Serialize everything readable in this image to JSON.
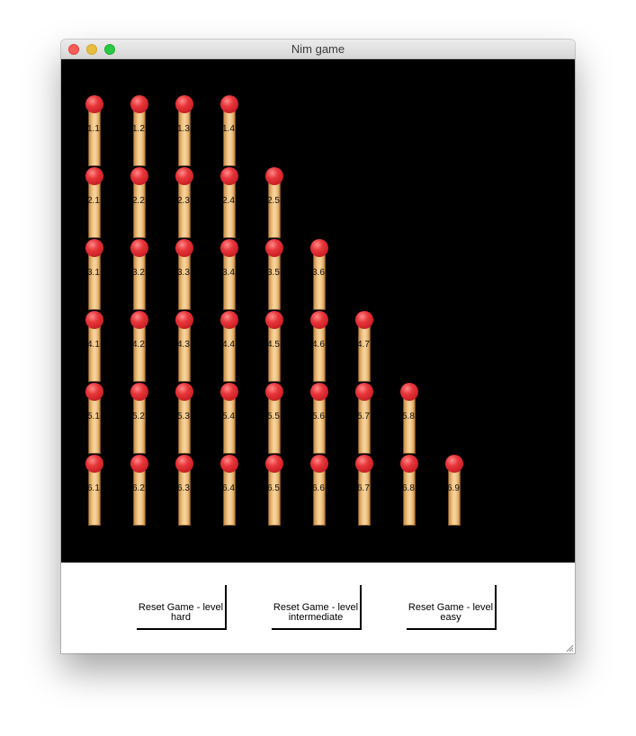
{
  "window": {
    "title": "Nim game"
  },
  "board": {
    "background": "#000000",
    "match_head_color": "#e8363a",
    "match_stick_color": "#f4c98a",
    "rows": [
      {
        "label_prefix": "1",
        "matches": [
          "1.1",
          "1.2",
          "1.3",
          "1.4"
        ]
      },
      {
        "label_prefix": "2",
        "matches": [
          "2.1",
          "2.2",
          "2.3",
          "2.4",
          "2.5"
        ]
      },
      {
        "label_prefix": "3",
        "matches": [
          "3.1",
          "3.2",
          "3.3",
          "3.4",
          "3.5",
          "3.6"
        ]
      },
      {
        "label_prefix": "4",
        "matches": [
          "4.1",
          "4.2",
          "4.3",
          "4.4",
          "4.5",
          "4.6",
          "4.7"
        ]
      },
      {
        "label_prefix": "5",
        "matches": [
          "5.1",
          "5.2",
          "5.3",
          "5.4",
          "5.5",
          "5.6",
          "5.7",
          "5.8"
        ]
      },
      {
        "label_prefix": "6",
        "matches": [
          "6.1",
          "6.2",
          "6.3",
          "6.4",
          "6.5",
          "6.6",
          "6.7",
          "6.8",
          "6.9"
        ]
      }
    ]
  },
  "controls": {
    "buttons": [
      {
        "name": "reset-hard-button",
        "line1": "Reset Game - level",
        "line2": "hard"
      },
      {
        "name": "reset-intermediate-button",
        "line1": "Reset Game - level",
        "line2": "intermediate"
      },
      {
        "name": "reset-easy-button",
        "line1": "Reset Game - level",
        "line2": "easy"
      }
    ]
  }
}
